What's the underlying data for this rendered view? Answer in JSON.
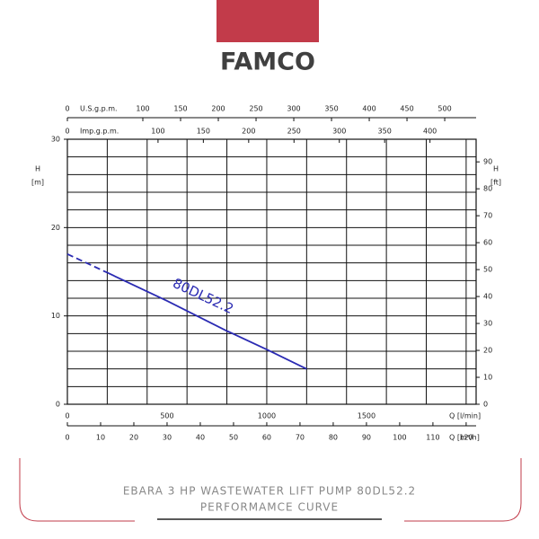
{
  "header": {
    "logo": "FAMCO"
  },
  "chart_data": {
    "type": "line",
    "xlim": [
      0,
      2050
    ],
    "xticks": [
      0,
      500,
      1000,
      1500
    ],
    "xlabel": "Q [l/min]",
    "ylim": [
      0,
      30
    ],
    "yticks": [
      0,
      10,
      20,
      30
    ],
    "ylabel": [
      "H",
      "[m]"
    ],
    "y2lim": [
      0,
      98.4
    ],
    "y2ticks": [
      0,
      10,
      20,
      30,
      40,
      50,
      60,
      70,
      80,
      90
    ],
    "y2label": [
      "H",
      "[ft]"
    ],
    "extra_x_axes": [
      {
        "position": "top",
        "label": "U.S.g.p.m.",
        "lim": [
          0,
          541.6
        ],
        "ticks": [
          0,
          100,
          150,
          200,
          250,
          300,
          350,
          400,
          450,
          500
        ]
      },
      {
        "position": "top",
        "label": "Imp.g.p.m.",
        "lim": [
          0,
          450.9
        ],
        "ticks": [
          0,
          100,
          150,
          200,
          250,
          300,
          350,
          400
        ]
      },
      {
        "position": "bottom",
        "label": "Q [m³/h]",
        "lim": [
          0,
          123
        ],
        "ticks": [
          0,
          10,
          20,
          30,
          40,
          50,
          60,
          70,
          80,
          90,
          100,
          110,
          120
        ]
      }
    ],
    "x_grid": [
      0,
      200,
      400,
      600,
      800,
      1000,
      1200,
      1400,
      1600,
      1800,
      2000
    ],
    "y_grid": [
      0,
      2,
      4,
      6,
      8,
      10,
      12,
      14,
      16,
      18,
      20,
      22,
      24,
      26,
      28,
      30
    ],
    "series": [
      {
        "name": "80DL52.2",
        "color": "#2b2bb3",
        "x": [
          0,
          200,
          500,
          800,
          1000,
          1200
        ],
        "values": [
          17,
          14.9,
          11.7,
          8.3,
          6.2,
          4
        ],
        "segment_styles": [
          "dashed",
          "solid",
          "solid",
          "solid",
          "solid"
        ]
      }
    ]
  },
  "footer": {
    "title_lines": [
      "EBARA 3 HP WASTEWATER LIFT PUMP 80DL52.2",
      "PERFORMAMCE CURVE"
    ]
  }
}
